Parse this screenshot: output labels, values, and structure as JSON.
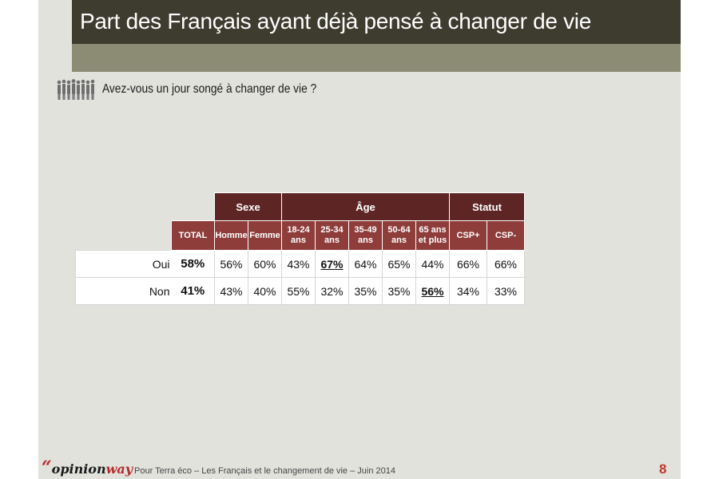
{
  "header": {
    "title": "Part des Français ayant déjà pensé à changer de vie"
  },
  "question": {
    "text": "Avez-vous un jour songé à changer de vie ?",
    "icon": "people-group-icon"
  },
  "chart_data": {
    "type": "table",
    "groups": [
      {
        "label": "Sexe",
        "span": 2
      },
      {
        "label": "Âge",
        "span": 5
      },
      {
        "label": "Statut",
        "span": 2
      }
    ],
    "total_label": "TOTAL",
    "columns": [
      {
        "line1": "Homme",
        "line2": ""
      },
      {
        "line1": "Femme",
        "line2": ""
      },
      {
        "line1": "18-24",
        "line2": "ans"
      },
      {
        "line1": "25-34",
        "line2": "ans"
      },
      {
        "line1": "35-49",
        "line2": "ans"
      },
      {
        "line1": "50-64",
        "line2": "ans"
      },
      {
        "line1": "65 ans",
        "line2": "et plus"
      },
      {
        "line1": "CSP+",
        "line2": ""
      },
      {
        "line1": "CSP-",
        "line2": ""
      }
    ],
    "rows": [
      {
        "label": "Oui",
        "total": "58%",
        "values": [
          "56%",
          "60%",
          "43%",
          "67%",
          "64%",
          "65%",
          "44%",
          "66%",
          "66%"
        ],
        "highlight_column": "25-34 ans"
      },
      {
        "label": "Non",
        "total": "41%",
        "values": [
          "43%",
          "40%",
          "55%",
          "32%",
          "35%",
          "35%",
          "56%",
          "34%",
          "33%"
        ],
        "highlight_column": "65 ans et plus"
      }
    ],
    "colors": {
      "group_header": "#5e2525",
      "sub_header": "#8e3d3b",
      "cell": "#ffffff",
      "title_bar": "#3e3b2f",
      "header_band": "#8b8c73",
      "slide_bg": "#e2e2dd"
    }
  },
  "footer": {
    "brand_quote": "“",
    "brand_part1": "opinion",
    "brand_part2": "way",
    "text": "Pour Terra éco – Les Français et le changement de vie – Juin 2014",
    "page_number": "8",
    "accent": "#b52a2a"
  }
}
